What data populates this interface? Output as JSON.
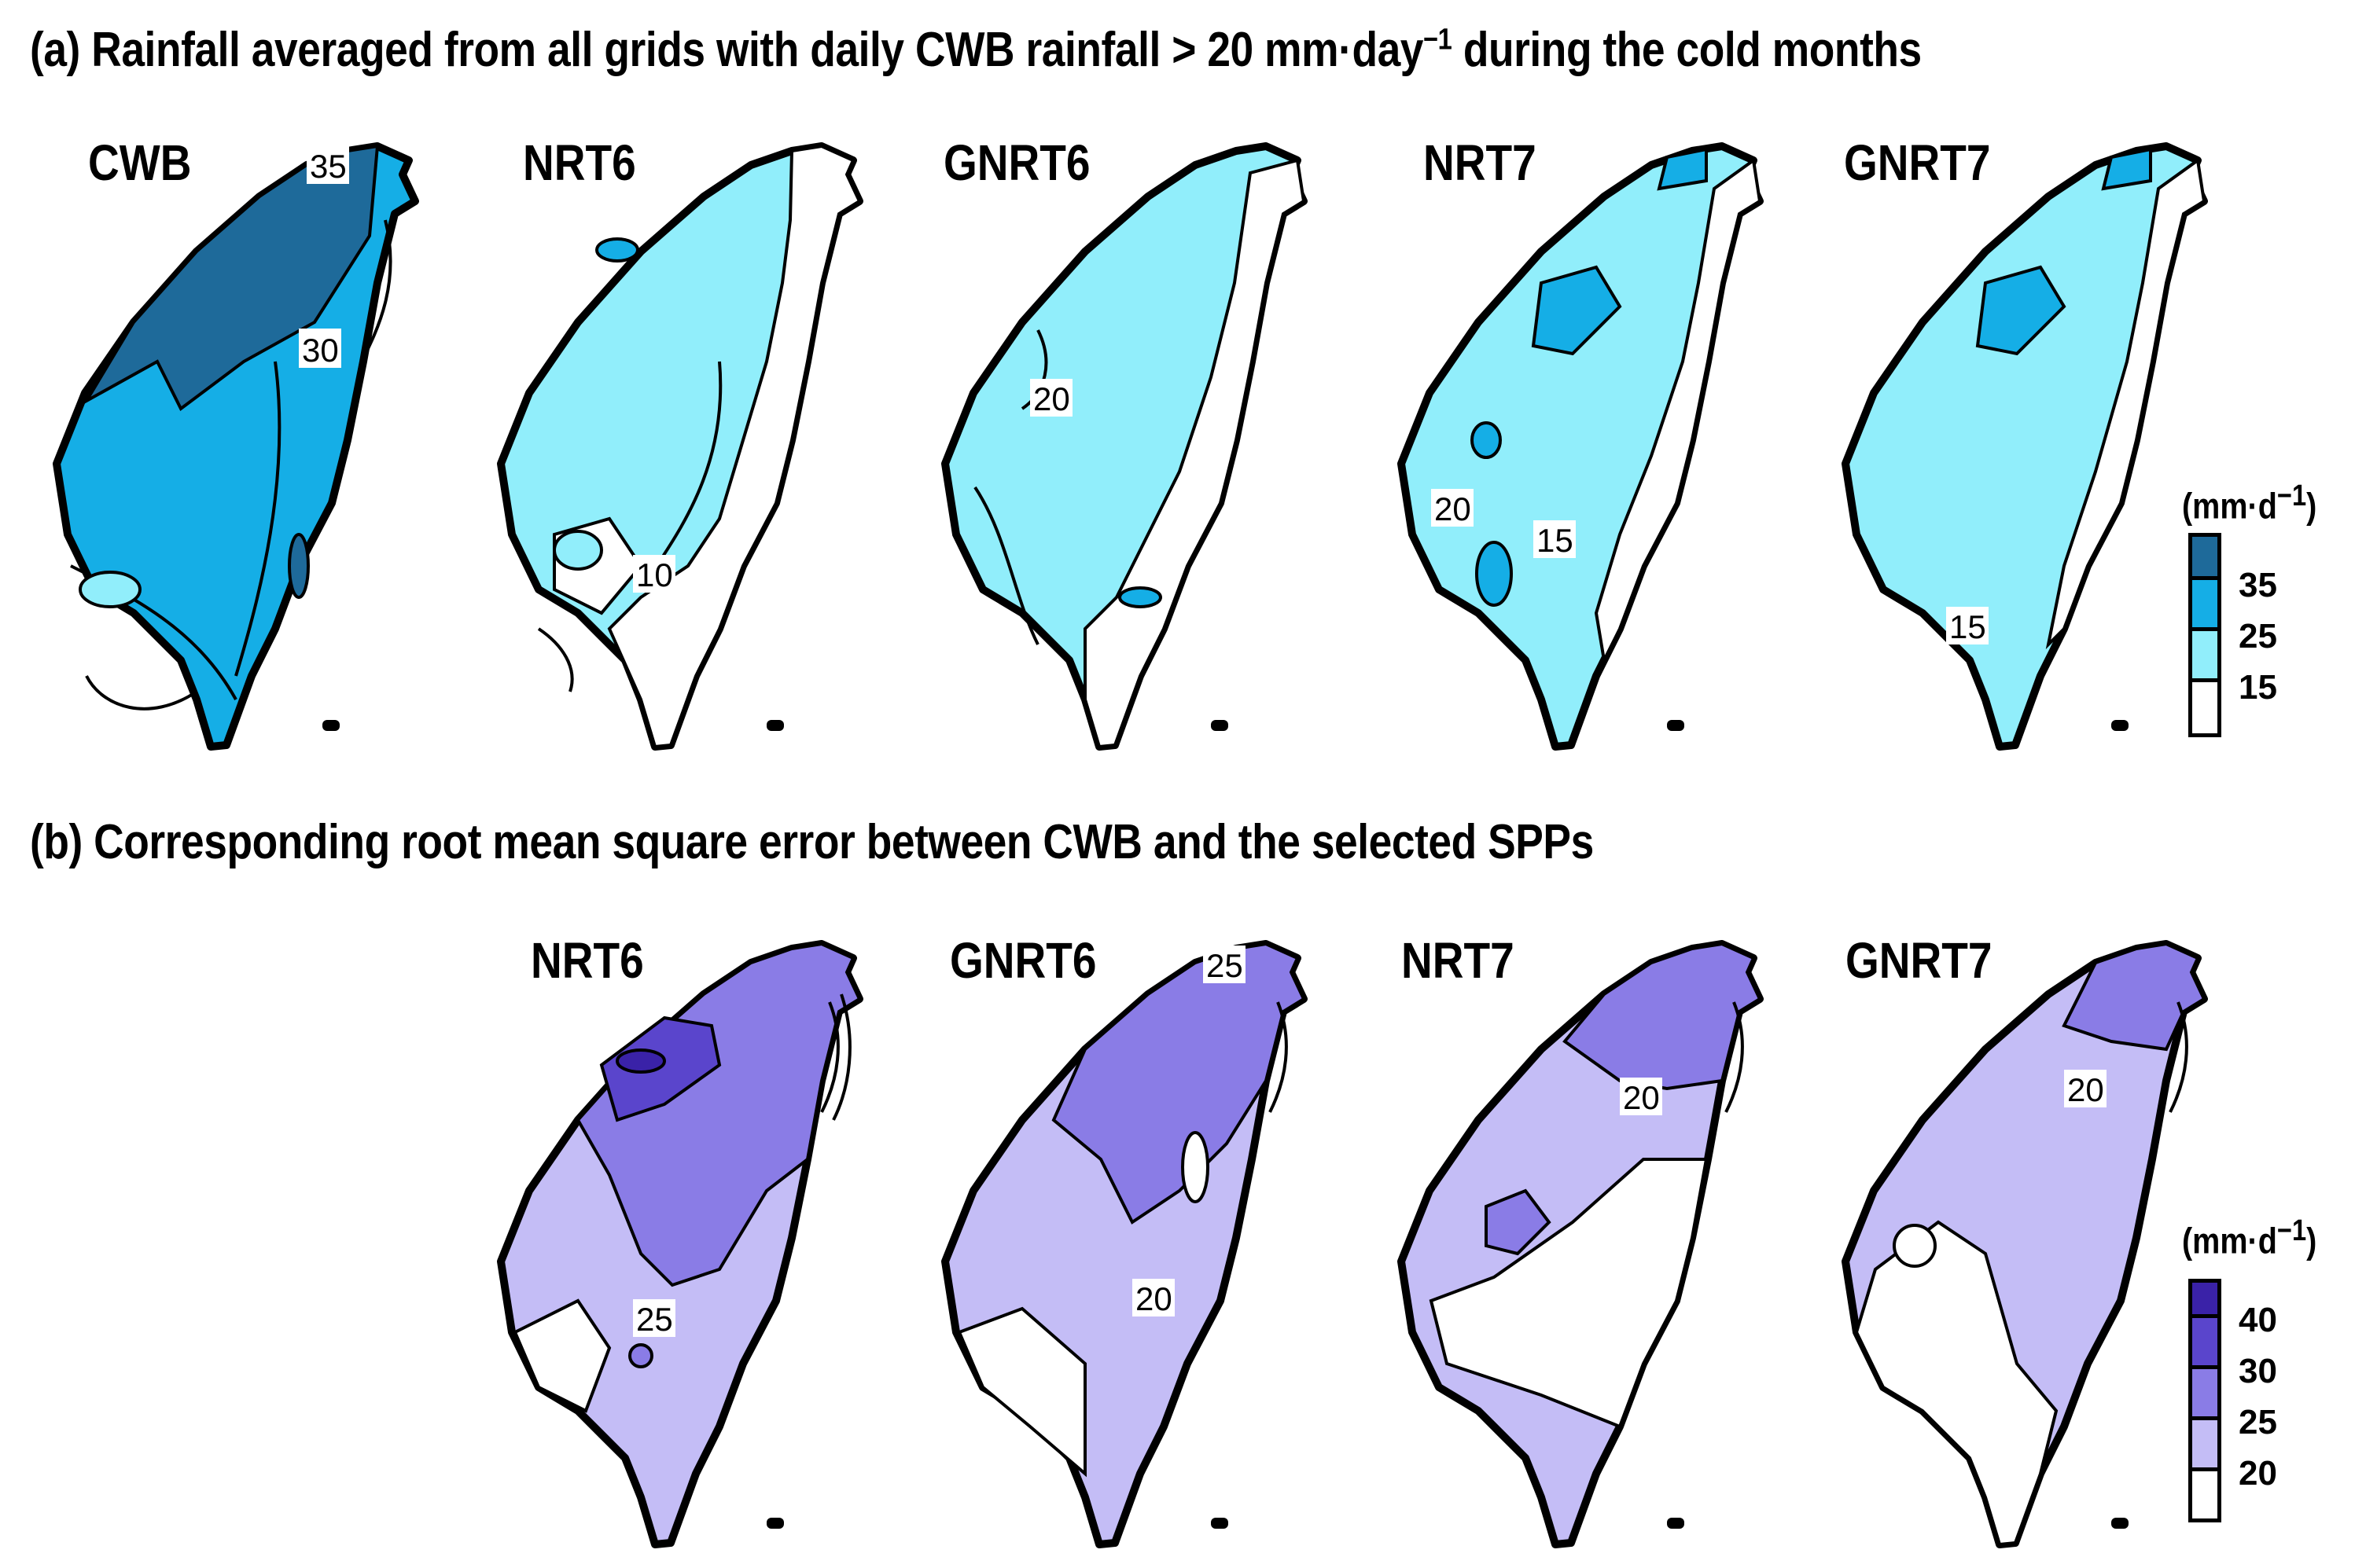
{
  "figure": {
    "title_a": "(a) Rainfall averaged from all grids with daily CWB rainfall > 20 mm·day",
    "title_a_sup": "−1",
    "title_a_tail": " during the cold months",
    "title_b": "(b) Corresponding root mean square error between CWB and the selected SPPs"
  },
  "row_a": {
    "panels": [
      {
        "label": "CWB",
        "contour_labels": [
          "35",
          "30"
        ]
      },
      {
        "label": "NRT6",
        "contour_labels": [
          "10"
        ]
      },
      {
        "label": "GNRT6",
        "contour_labels": [
          "20"
        ]
      },
      {
        "label": "NRT7",
        "contour_labels": [
          "20",
          "15"
        ]
      },
      {
        "label": "GNRT7",
        "contour_labels": [
          "15"
        ]
      }
    ],
    "legend": {
      "unit": "(mm·d",
      "unit_sup": "−1",
      "unit_close": ")",
      "ticks": [
        "35",
        "25",
        "15"
      ],
      "colors": [
        "#1e6a9a",
        "#15aee6",
        "#91eefb",
        "#ffffff"
      ]
    }
  },
  "row_b": {
    "panels": [
      {
        "label": "NRT6",
        "contour_labels": [
          "25"
        ]
      },
      {
        "label": "GNRT6",
        "contour_labels": [
          "25",
          "20"
        ]
      },
      {
        "label": "NRT7",
        "contour_labels": [
          "20"
        ]
      },
      {
        "label": "GNRT7",
        "contour_labels": [
          "20"
        ]
      }
    ],
    "legend": {
      "unit": "(mm·d",
      "unit_sup": "−1",
      "unit_close": ")",
      "ticks": [
        "40",
        "30",
        "25",
        "20"
      ],
      "colors": [
        "#3a22a8",
        "#5a45cc",
        "#8a7ce6",
        "#c4bdf6",
        "#ffffff"
      ]
    }
  }
}
